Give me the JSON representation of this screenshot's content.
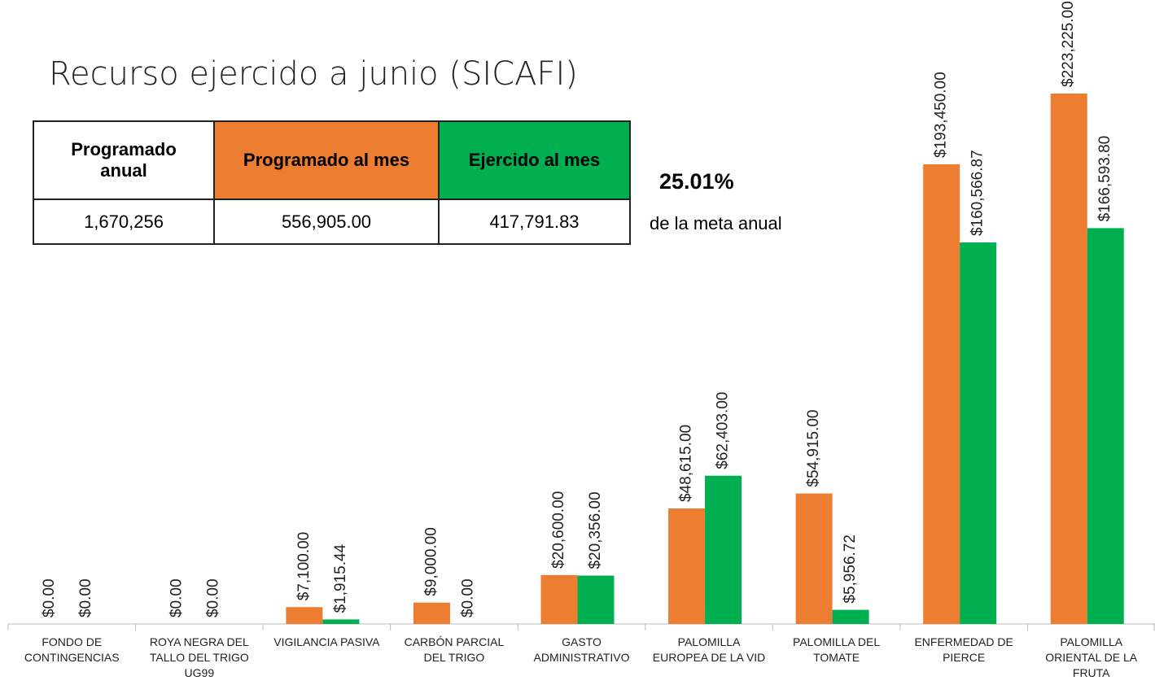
{
  "title": "Recurso ejercido a junio (SICAFI)",
  "table": {
    "headers": [
      "Programado anual",
      "Programado al mes",
      "Ejercido al mes"
    ],
    "rows": [
      [
        "1,670,256",
        "556,905.00",
        "417,791.83"
      ]
    ]
  },
  "note": {
    "value": "25.01%",
    "text": "de la meta anual"
  },
  "chart_data": {
    "type": "bar",
    "categories": [
      "FONDO DE CONTINGENCIAS",
      "ROYA NEGRA DEL TALLO DEL TRIGO UG99",
      "VIGILANCIA PASIVA",
      "CARBÓN PARCIAL DEL TRIGO",
      "GASTO ADMINISTRATIVO",
      "PALOMILLA EUROPEA DE LA VID",
      "PALOMILLA DEL TOMATE",
      "ENFERMEDAD DE PIERCE",
      "PALOMILLA ORIENTAL DE LA FRUTA"
    ],
    "series": [
      {
        "color": "#ed7d31",
        "values": [
          0,
          0,
          7100,
          9000,
          20600,
          48615,
          54915,
          193450,
          223225
        ],
        "value_labels": [
          "$0.00",
          "$0.00",
          "$7,100.00",
          "$9,000.00",
          "$20,600.00",
          "$48,615.00",
          "$54,915.00",
          "$193,450.00",
          "$223,225.00"
        ]
      },
      {
        "color": "#00b050",
        "values": [
          0,
          0,
          1915.44,
          0,
          20356,
          62403,
          5956.72,
          160566.87,
          166593.8
        ],
        "value_labels": [
          "$0.00",
          "$0.00",
          "$1,915.44",
          "$0.00",
          "$20,356.00",
          "$62,403.00",
          "$5,956.72",
          "$160,566.87",
          "$166,593.80"
        ]
      }
    ]
  }
}
